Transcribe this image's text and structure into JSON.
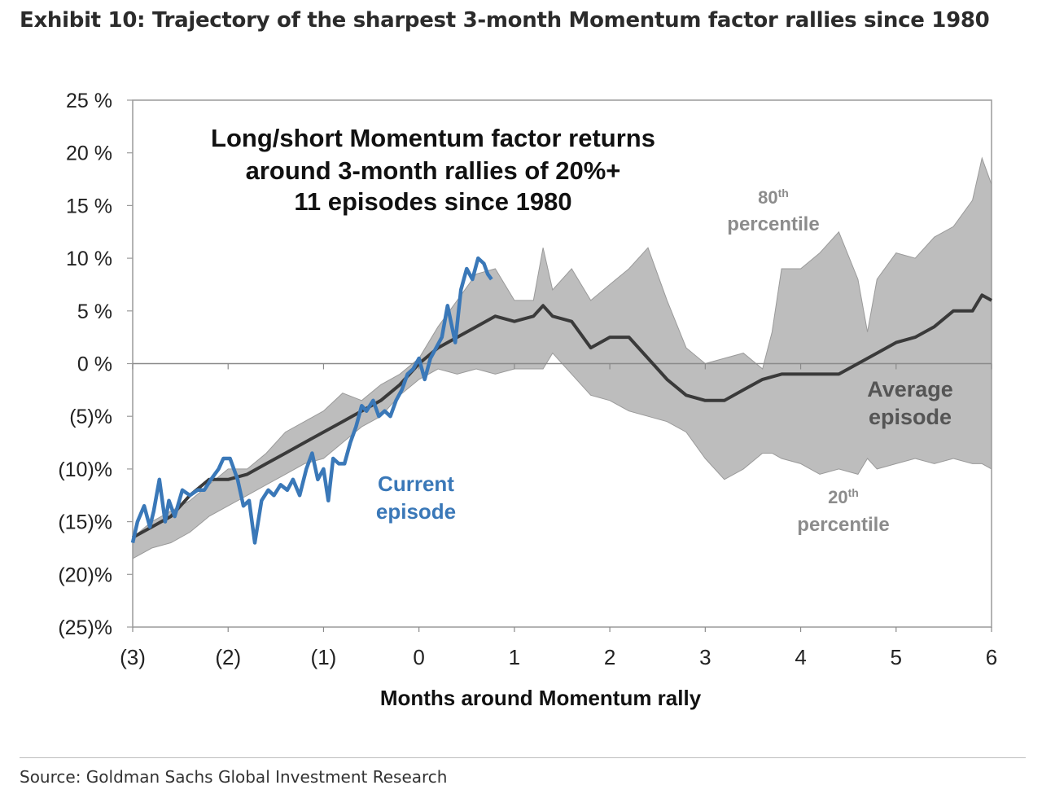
{
  "header": {
    "exhibit_title": "Exhibit 10: Trajectory of the sharpest 3-month Momentum factor rallies since 1980"
  },
  "footer": {
    "source": "Source: Goldman Sachs Global Investment Research"
  },
  "chart_data": {
    "type": "line",
    "title": "Long/short Momentum factor returns",
    "subtitle_lines": [
      "around 3-month rallies of 20%+",
      "11 episodes since 1980"
    ],
    "xlabel": "Months around Momentum rally",
    "ylabel": "",
    "xlim": [
      -3,
      6
    ],
    "ylim": [
      -25,
      25
    ],
    "x_ticks": [
      {
        "value": -3,
        "label": "(3)"
      },
      {
        "value": -2,
        "label": "(2)"
      },
      {
        "value": -1,
        "label": "(1)"
      },
      {
        "value": 0,
        "label": "0"
      },
      {
        "value": 1,
        "label": "1"
      },
      {
        "value": 2,
        "label": "2"
      },
      {
        "value": 3,
        "label": "3"
      },
      {
        "value": 4,
        "label": "4"
      },
      {
        "value": 5,
        "label": "5"
      },
      {
        "value": 6,
        "label": "6"
      }
    ],
    "y_ticks": [
      {
        "value": 25,
        "label": "25 %"
      },
      {
        "value": 20,
        "label": "20 %"
      },
      {
        "value": 15,
        "label": "15 %"
      },
      {
        "value": 10,
        "label": "10 %"
      },
      {
        "value": 5,
        "label": "5 %"
      },
      {
        "value": 0,
        "label": "0 %"
      },
      {
        "value": -5,
        "label": "(5)%"
      },
      {
        "value": -10,
        "label": "(10)%"
      },
      {
        "value": -15,
        "label": "(15)%"
      },
      {
        "value": -20,
        "label": "(20)%"
      },
      {
        "value": -25,
        "label": "(25)%"
      }
    ],
    "colors": {
      "band": "#bdbdbd",
      "band_edge": "#9a9a9a",
      "average": "#3a3a3a",
      "current": "#3a78b8",
      "annotation_gray": "#8c8c8c"
    },
    "band": {
      "name": "80th / 20th percentile range",
      "x": [
        -3.0,
        -2.8,
        -2.6,
        -2.4,
        -2.2,
        -2.0,
        -1.8,
        -1.6,
        -1.4,
        -1.2,
        -1.0,
        -0.8,
        -0.6,
        -0.4,
        -0.2,
        0.0,
        0.2,
        0.4,
        0.6,
        0.8,
        1.0,
        1.2,
        1.3,
        1.4,
        1.6,
        1.8,
        2.0,
        2.2,
        2.4,
        2.6,
        2.8,
        3.0,
        3.2,
        3.4,
        3.6,
        3.7,
        3.8,
        4.0,
        4.2,
        4.4,
        4.6,
        4.7,
        4.8,
        5.0,
        5.2,
        5.4,
        5.6,
        5.8,
        5.9,
        6.0
      ],
      "upper": [
        -16.5,
        -15.0,
        -14.0,
        -13.0,
        -11.5,
        -10.0,
        -10.0,
        -8.5,
        -6.5,
        -5.5,
        -4.5,
        -2.8,
        -3.5,
        -2.0,
        -1.0,
        0.5,
        3.5,
        6.0,
        8.5,
        9.0,
        6.0,
        6.0,
        11.0,
        7.0,
        9.0,
        6.0,
        7.5,
        9.0,
        11.0,
        6.0,
        1.5,
        0.0,
        0.5,
        1.0,
        -0.5,
        3.0,
        9.0,
        9.0,
        10.5,
        12.5,
        8.0,
        3.0,
        8.0,
        10.5,
        10.0,
        12.0,
        13.0,
        15.5,
        19.5,
        17.0
      ],
      "lower": [
        -18.5,
        -17.5,
        -17.0,
        -16.0,
        -14.5,
        -13.5,
        -12.5,
        -11.5,
        -10.5,
        -9.5,
        -9.0,
        -7.5,
        -6.0,
        -5.0,
        -3.0,
        -1.5,
        -0.5,
        -1.0,
        -0.5,
        -1.0,
        -0.5,
        -0.5,
        -0.5,
        1.0,
        -1.0,
        -3.0,
        -3.5,
        -4.5,
        -5.0,
        -5.5,
        -6.5,
        -9.0,
        -11.0,
        -10.0,
        -8.5,
        -8.5,
        -9.0,
        -9.5,
        -10.5,
        -10.0,
        -10.5,
        -9.0,
        -10.0,
        -9.5,
        -9.0,
        -9.5,
        -9.0,
        -9.5,
        -9.5,
        -10.0
      ]
    },
    "series": [
      {
        "name": "Average episode",
        "x": [
          -3.0,
          -2.8,
          -2.6,
          -2.4,
          -2.2,
          -2.0,
          -1.8,
          -1.6,
          -1.4,
          -1.2,
          -1.0,
          -0.8,
          -0.6,
          -0.4,
          -0.2,
          0.0,
          0.2,
          0.4,
          0.6,
          0.8,
          1.0,
          1.2,
          1.3,
          1.4,
          1.6,
          1.8,
          2.0,
          2.2,
          2.4,
          2.6,
          2.8,
          3.0,
          3.2,
          3.4,
          3.6,
          3.8,
          4.0,
          4.2,
          4.4,
          4.6,
          4.8,
          5.0,
          5.2,
          5.4,
          5.6,
          5.8,
          5.9,
          6.0
        ],
        "values": [
          -16.5,
          -15.5,
          -14.5,
          -12.5,
          -11.0,
          -11.0,
          -10.5,
          -9.5,
          -8.5,
          -7.5,
          -6.5,
          -5.5,
          -4.5,
          -3.5,
          -2.0,
          0.0,
          1.5,
          2.5,
          3.5,
          4.5,
          4.0,
          4.5,
          5.5,
          4.5,
          4.0,
          1.5,
          2.5,
          2.5,
          0.5,
          -1.5,
          -3.0,
          -3.5,
          -3.5,
          -2.5,
          -1.5,
          -1.0,
          -1.0,
          -1.0,
          -1.0,
          0.0,
          1.0,
          2.0,
          2.5,
          3.5,
          5.0,
          5.0,
          6.5,
          6.0
        ]
      },
      {
        "name": "Current episode",
        "x": [
          -3.0,
          -2.95,
          -2.88,
          -2.82,
          -2.78,
          -2.72,
          -2.66,
          -2.62,
          -2.56,
          -2.48,
          -2.4,
          -2.32,
          -2.25,
          -2.18,
          -2.1,
          -2.05,
          -1.98,
          -1.9,
          -1.84,
          -1.78,
          -1.72,
          -1.65,
          -1.58,
          -1.52,
          -1.45,
          -1.38,
          -1.32,
          -1.25,
          -1.18,
          -1.12,
          -1.06,
          -1.0,
          -0.95,
          -0.9,
          -0.84,
          -0.78,
          -0.72,
          -0.66,
          -0.6,
          -0.55,
          -0.48,
          -0.42,
          -0.36,
          -0.3,
          -0.24,
          -0.18,
          -0.12,
          -0.06,
          0.0,
          0.06,
          0.12,
          0.18,
          0.24,
          0.3,
          0.38,
          0.44,
          0.5,
          0.56,
          0.62,
          0.68,
          0.72,
          0.76
        ],
        "values": [
          -17.0,
          -15.0,
          -13.5,
          -15.5,
          -14.0,
          -11.0,
          -15.0,
          -13.0,
          -14.5,
          -12.0,
          -12.5,
          -12.0,
          -12.0,
          -11.0,
          -10.0,
          -9.0,
          -9.0,
          -11.0,
          -13.5,
          -13.0,
          -17.0,
          -13.0,
          -12.0,
          -12.5,
          -11.5,
          -12.0,
          -11.0,
          -12.5,
          -10.0,
          -8.5,
          -11.0,
          -10.0,
          -13.0,
          -9.0,
          -9.5,
          -9.5,
          -7.5,
          -6.0,
          -4.0,
          -4.5,
          -3.5,
          -5.0,
          -4.5,
          -5.0,
          -3.5,
          -2.5,
          -1.0,
          -0.5,
          0.5,
          -1.5,
          0.5,
          1.5,
          2.5,
          5.5,
          2.0,
          7.0,
          9.0,
          8.0,
          10.0,
          9.5,
          8.5,
          8.0
        ]
      }
    ],
    "annotations": {
      "pct80_main": "80",
      "pct80_sup": "th",
      "pct80_word": "percentile",
      "pct20_main": "20",
      "pct20_sup": "th",
      "pct20_word": "percentile",
      "avg_line1": "Average",
      "avg_line2": "episode",
      "cur_line1": "Current",
      "cur_line2": "episode"
    }
  }
}
